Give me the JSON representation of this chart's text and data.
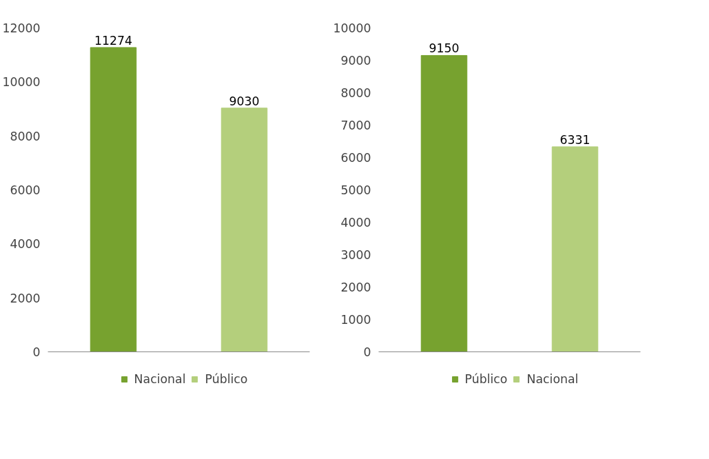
{
  "chart_data": [
    {
      "type": "bar",
      "categories": [
        null,
        null
      ],
      "series": [
        {
          "name": "Nacional",
          "color": "#77a22f",
          "values": [
            11274,
            null
          ]
        },
        {
          "name": "Público",
          "color": "#b4cf7c",
          "values": [
            null,
            9030
          ]
        }
      ],
      "stacked": true,
      "ylim": [
        0,
        12000
      ],
      "yticks": [
        0,
        2000,
        4000,
        6000,
        8000,
        10000,
        12000
      ],
      "grid": false,
      "legend": "bottom",
      "data_labels": true
    },
    {
      "type": "bar",
      "categories": [
        null,
        null
      ],
      "series": [
        {
          "name": "Público",
          "color": "#77a22f",
          "values": [
            9150,
            null
          ]
        },
        {
          "name": "Nacional",
          "color": "#b4cf7c",
          "values": [
            null,
            6331
          ]
        }
      ],
      "stacked": true,
      "ylim": [
        0,
        10000
      ],
      "yticks": [
        0,
        1000,
        2000,
        3000,
        4000,
        5000,
        6000,
        7000,
        8000,
        9000,
        10000
      ],
      "grid": false,
      "legend": "bottom",
      "data_labels": true
    }
  ]
}
